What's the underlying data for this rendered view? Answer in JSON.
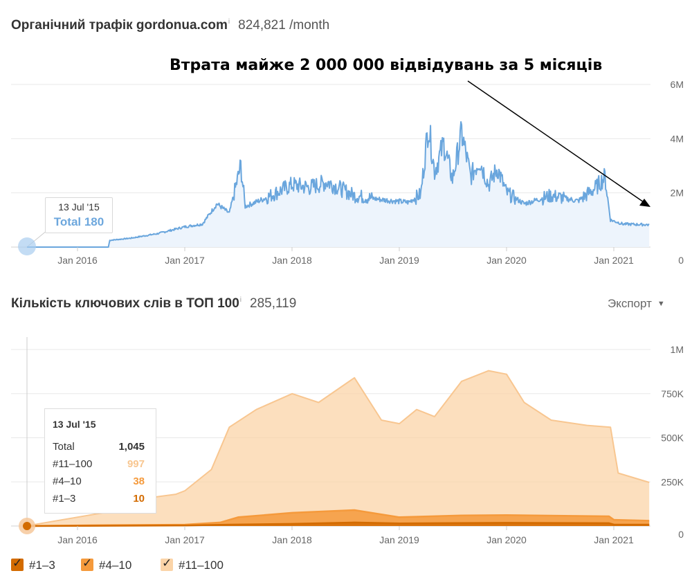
{
  "traffic_panel": {
    "title": "Органічний трафік gordonua.com",
    "info_icon": "i",
    "summary_value": "824,821 /month",
    "annotation": "Втрата майже 2 000 000 відвідувань за 5 місяців",
    "tooltip": {
      "date": "13 Jul '15",
      "total_label": "Total 180"
    }
  },
  "keywords_panel": {
    "title": "Кількість ключових слів в ТОП 100",
    "info_icon": "i",
    "summary_value": "285,119",
    "export_label": "Экспорт",
    "tooltip": {
      "date": "13 Jul '15",
      "rows": [
        {
          "label": "Total",
          "value": "1,045"
        },
        {
          "label": "#11–100",
          "value": "997"
        },
        {
          "label": "#4–10",
          "value": "38"
        },
        {
          "label": "#1–3",
          "value": "10"
        }
      ]
    },
    "legend": [
      "#1–3",
      "#4–10",
      "#11–100"
    ]
  },
  "colors": {
    "traffic_line": "#6aa6dd",
    "traffic_fill": "#edf4fc",
    "top3": "#d36b00",
    "top4_10": "#f59a3c",
    "top11_100": "#fbd4a8",
    "top11_100_line": "#f8c690"
  },
  "chart_data": [
    {
      "type": "area",
      "title": "Органічний трафік gordonua.com",
      "x_ticks": [
        "Jan 2016",
        "Jan 2017",
        "Jan 2018",
        "Jan 2019",
        "Jan 2020",
        "Jan 2021"
      ],
      "y_ticks": [
        "0",
        "2M",
        "4M",
        "6M"
      ],
      "ylim": [
        0,
        6000000
      ],
      "series": [
        {
          "points": [
            [
              "2015-07-13",
              180
            ],
            [
              "2016-01-01",
              300
            ],
            [
              "2016-04-15",
              1000
            ],
            [
              "2016-04-20",
              250000
            ],
            [
              "2016-07-01",
              330000
            ],
            [
              "2016-10-01",
              500000
            ],
            [
              "2017-01-01",
              750000
            ],
            [
              "2017-03-01",
              850000
            ],
            [
              "2017-04-20",
              1600000
            ],
            [
              "2017-06-01",
              1250000
            ],
            [
              "2017-07-10",
              3000000
            ],
            [
              "2017-07-25",
              1500000
            ],
            [
              "2017-10-01",
              1800000
            ],
            [
              "2018-01-01",
              2300000
            ],
            [
              "2018-03-01",
              2200000
            ],
            [
              "2018-05-01",
              2400000
            ],
            [
              "2018-08-01",
              1900000
            ],
            [
              "2018-11-01",
              1750000
            ],
            [
              "2019-02-01",
              1650000
            ],
            [
              "2019-03-15",
              1950000
            ],
            [
              "2019-04-10",
              4500000
            ],
            [
              "2019-05-01",
              2800000
            ],
            [
              "2019-06-01",
              3800000
            ],
            [
              "2019-07-01",
              2500000
            ],
            [
              "2019-08-01",
              4200000
            ],
            [
              "2019-09-01",
              2600000
            ],
            [
              "2019-10-01",
              3200000
            ],
            [
              "2019-11-01",
              2300000
            ],
            [
              "2019-12-01",
              2900000
            ],
            [
              "2020-01-01",
              2000000
            ],
            [
              "2020-03-01",
              1600000
            ],
            [
              "2020-06-01",
              1900000
            ],
            [
              "2020-09-01",
              1700000
            ],
            [
              "2020-11-01",
              2200000
            ],
            [
              "2020-12-01",
              2600000
            ],
            [
              "2020-12-20",
              1000000
            ],
            [
              "2021-02-01",
              850000
            ],
            [
              "2021-05-01",
              824821
            ]
          ]
        }
      ]
    },
    {
      "type": "area",
      "title": "Кількість ключових слів в ТОП 100",
      "x_ticks": [
        "Jan 2016",
        "Jan 2017",
        "Jan 2018",
        "Jan 2019",
        "Jan 2020",
        "Jan 2021"
      ],
      "y_ticks": [
        "0",
        "250K",
        "500K",
        "750K",
        "1M"
      ],
      "ylim": [
        0,
        1000000
      ],
      "series": [
        {
          "name": "#1–3",
          "points": [
            [
              "2015-07-13",
              10
            ],
            [
              "2016-04-15",
              1500
            ],
            [
              "2017-01-01",
              3000
            ],
            [
              "2017-06-01",
              8000
            ],
            [
              "2018-01-01",
              12000
            ],
            [
              "2018-08-01",
              20000
            ],
            [
              "2019-01-01",
              15000
            ],
            [
              "2020-01-01",
              18000
            ],
            [
              "2020-12-15",
              16000
            ],
            [
              "2021-01-01",
              8000
            ],
            [
              "2021-05-01",
              8000
            ]
          ]
        },
        {
          "name": "#4–10",
          "points": [
            [
              "2015-07-13",
              38
            ],
            [
              "2016-04-15",
              5000
            ],
            [
              "2017-01-01",
              8000
            ],
            [
              "2017-05-01",
              20000
            ],
            [
              "2017-07-01",
              50000
            ],
            [
              "2018-01-01",
              75000
            ],
            [
              "2018-08-01",
              90000
            ],
            [
              "2019-01-01",
              50000
            ],
            [
              "2019-08-01",
              60000
            ],
            [
              "2020-01-01",
              62000
            ],
            [
              "2020-12-15",
              55000
            ],
            [
              "2021-01-01",
              35000
            ],
            [
              "2021-05-01",
              30000
            ]
          ]
        },
        {
          "name": "#11–100",
          "points": [
            [
              "2015-07-13",
              997
            ],
            [
              "2016-04-15",
              80000
            ],
            [
              "2016-06-01",
              140000
            ],
            [
              "2016-09-01",
              160000
            ],
            [
              "2016-12-01",
              180000
            ],
            [
              "2017-01-01",
              200000
            ],
            [
              "2017-04-01",
              320000
            ],
            [
              "2017-06-01",
              560000
            ],
            [
              "2017-09-01",
              660000
            ],
            [
              "2018-01-01",
              750000
            ],
            [
              "2018-04-01",
              700000
            ],
            [
              "2018-08-01",
              840000
            ],
            [
              "2018-11-01",
              600000
            ],
            [
              "2019-01-01",
              580000
            ],
            [
              "2019-03-01",
              660000
            ],
            [
              "2019-05-01",
              620000
            ],
            [
              "2019-08-01",
              820000
            ],
            [
              "2019-11-01",
              880000
            ],
            [
              "2020-01-01",
              860000
            ],
            [
              "2020-03-01",
              700000
            ],
            [
              "2020-06-01",
              600000
            ],
            [
              "2020-10-01",
              570000
            ],
            [
              "2020-12-20",
              560000
            ],
            [
              "2021-01-15",
              300000
            ],
            [
              "2021-05-01",
              247000
            ]
          ]
        }
      ]
    }
  ]
}
